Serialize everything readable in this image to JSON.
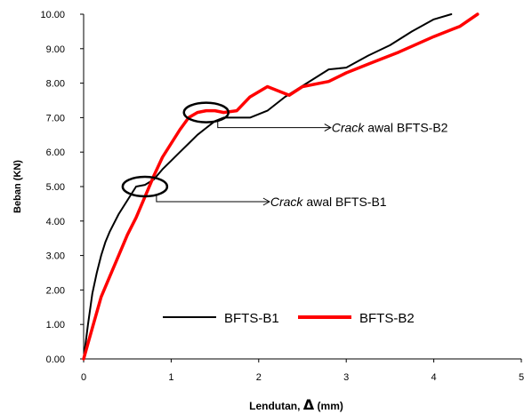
{
  "chart_data": {
    "type": "line",
    "xlabel": "Lendutan,",
    "xlabel_symbol": "Δ",
    "xlabel_unit": "(mm)",
    "ylabel": "Beban  (KN)",
    "xlim": [
      0,
      5
    ],
    "ylim": [
      0,
      10
    ],
    "x_ticks": [
      "0",
      "1",
      "2",
      "3",
      "4",
      "5"
    ],
    "y_ticks": [
      "0.00",
      "1.00",
      "2.00",
      "3.00",
      "4.00",
      "5.00",
      "6.00",
      "7.00",
      "8.00",
      "9.00",
      "10.00"
    ],
    "grid": false,
    "legend_position": "bottom-center",
    "series": [
      {
        "name": "BFTS-B1",
        "color": "#000000",
        "x": [
          0,
          0.05,
          0.1,
          0.15,
          0.2,
          0.25,
          0.3,
          0.4,
          0.5,
          0.6,
          0.7,
          0.8,
          0.9,
          1.0,
          1.1,
          1.2,
          1.3,
          1.4,
          1.5,
          1.6,
          1.75,
          1.9,
          2.1,
          2.3,
          2.55,
          2.8,
          3.0,
          3.25,
          3.5,
          3.75,
          4.0,
          4.2
        ],
        "y": [
          0,
          1.0,
          1.9,
          2.5,
          3.0,
          3.4,
          3.7,
          4.2,
          4.6,
          5.0,
          5.05,
          5.2,
          5.5,
          5.75,
          6.0,
          6.25,
          6.5,
          6.7,
          6.9,
          7.0,
          7.0,
          7.0,
          7.2,
          7.6,
          8.0,
          8.4,
          8.45,
          8.8,
          9.1,
          9.5,
          9.85,
          10.0
        ]
      },
      {
        "name": "BFTS-B2",
        "color": "#ff0000",
        "x": [
          0,
          0.1,
          0.2,
          0.3,
          0.4,
          0.5,
          0.6,
          0.7,
          0.8,
          0.9,
          1.0,
          1.1,
          1.2,
          1.3,
          1.4,
          1.5,
          1.6,
          1.75,
          1.9,
          2.1,
          2.35,
          2.5,
          2.8,
          3.0,
          3.3,
          3.6,
          4.0,
          4.3,
          4.5
        ],
        "y": [
          0,
          0.9,
          1.8,
          2.4,
          3.0,
          3.6,
          4.1,
          4.7,
          5.3,
          5.85,
          6.25,
          6.65,
          7.0,
          7.15,
          7.2,
          7.2,
          7.15,
          7.2,
          7.6,
          7.9,
          7.65,
          7.9,
          8.05,
          8.3,
          8.6,
          8.9,
          9.35,
          9.65,
          10.0
        ]
      }
    ],
    "annotations": [
      {
        "italic": "Crack",
        "text": " awal BFTS-B1",
        "target": [
          0.7,
          5.0
        ]
      },
      {
        "italic": "Crack",
        "text": " awal BFTS-B2",
        "target": [
          1.4,
          7.15
        ]
      }
    ]
  }
}
